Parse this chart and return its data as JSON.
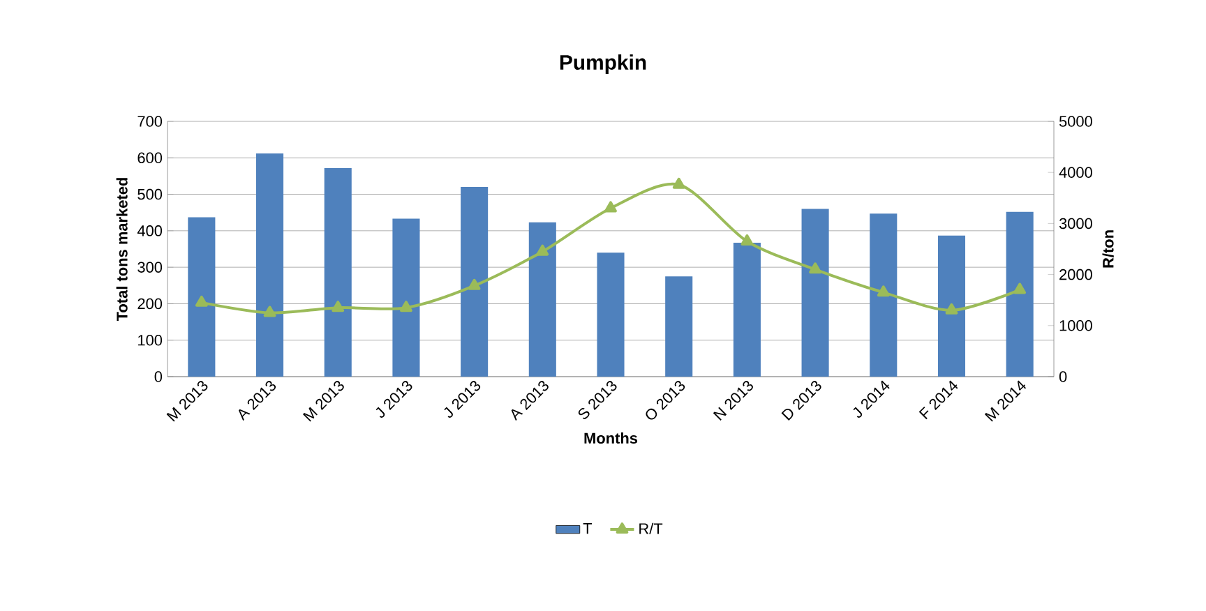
{
  "chart_data": {
    "type": "bar",
    "title": "Pumpkin",
    "xlabel": "Months",
    "ylabel": "Total tons marketed",
    "y2label": "R/ton",
    "categories": [
      "M 2013",
      "A 2013",
      "M 2013",
      "J 2013",
      "J 2013",
      "A 2013",
      "S 2013",
      "O 2013",
      "N 2013",
      "D 2013",
      "J 2014",
      "F 2014",
      "M 2014"
    ],
    "series": [
      {
        "name": "T",
        "color": "#4f81bd",
        "values": [
          437,
          612,
          572,
          433,
          520,
          423,
          340,
          275,
          367,
          460,
          447,
          387,
          452
        ]
      },
      {
        "name": "R/T",
        "type": "line",
        "axis": "y2",
        "color": "#9bbb59",
        "values": [
          1450,
          1250,
          1350,
          1350,
          1780,
          2450,
          3300,
          3760,
          2650,
          2100,
          1650,
          1300,
          1700
        ]
      }
    ],
    "marker": "triangle",
    "ylim": [
      0,
      700
    ],
    "yticks": [
      0,
      100,
      200,
      300,
      400,
      500,
      600,
      700
    ],
    "y2lim": [
      0,
      5000
    ],
    "y2ticks": [
      0,
      1000,
      2000,
      3000,
      4000,
      5000
    ],
    "grid": "y",
    "legend": "bottom"
  }
}
